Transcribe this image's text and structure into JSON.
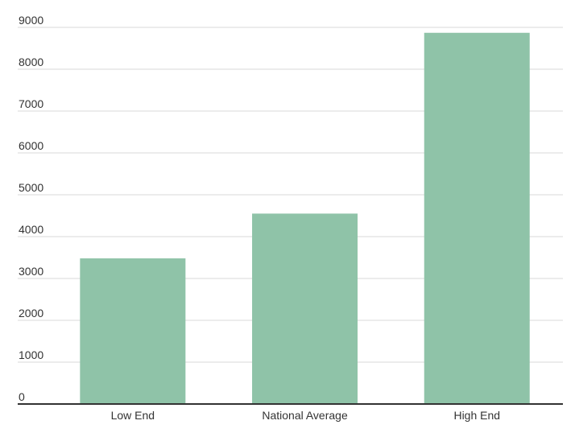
{
  "chart_data": {
    "type": "bar",
    "title": "",
    "xlabel": "",
    "ylabel": "",
    "categories": [
      "Low End",
      "National Average",
      "High End"
    ],
    "values": [
      3480,
      4550,
      8870
    ],
    "ylim": [
      0,
      9000
    ],
    "yticks": [
      0,
      1000,
      2000,
      3000,
      4000,
      5000,
      6000,
      7000,
      8000,
      9000
    ],
    "grid": true,
    "bar_color": "#8fc3a8",
    "grid_color": "#d9d9d9",
    "axis_color": "#333333"
  }
}
